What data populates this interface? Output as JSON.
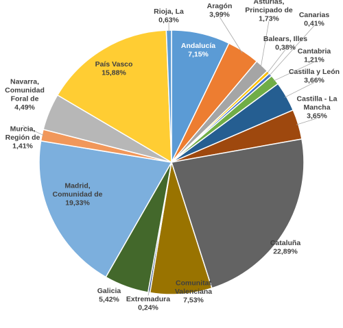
{
  "chart_data": {
    "type": "pie",
    "start_angle_deg": 0,
    "slices": [
      {
        "lines": [
          "Andalucía",
          "7,15%"
        ],
        "value": 7.15,
        "color": "#5b9bd5"
      },
      {
        "lines": [
          "Aragón",
          "3,99%"
        ],
        "value": 3.99,
        "color": "#ed7d31"
      },
      {
        "lines": [
          "Asturias,",
          "Principado de",
          "1,73%"
        ],
        "value": 1.73,
        "color": "#a5a5a5"
      },
      {
        "lines": [
          "Balears, Illes",
          "0,38%"
        ],
        "value": 0.38,
        "color": "#ffc000"
      },
      {
        "lines": [
          "Canarias",
          "0,41%"
        ],
        "value": 0.41,
        "color": "#4472c4"
      },
      {
        "lines": [
          "Cantabria",
          "1,21%"
        ],
        "value": 1.21,
        "color": "#70ad47"
      },
      {
        "lines": [
          "Castilla y León",
          "3,66%"
        ],
        "value": 3.66,
        "color": "#255e91"
      },
      {
        "lines": [
          "Castilla - La",
          "Mancha",
          "3,65%"
        ],
        "value": 3.65,
        "color": "#9e480e"
      },
      {
        "lines": [
          "Cataluña",
          "22,89%"
        ],
        "value": 22.89,
        "color": "#636363"
      },
      {
        "lines": [
          "Comunitat",
          "Valenciana",
          "7,53%"
        ],
        "value": 7.53,
        "color": "#997300"
      },
      {
        "lines": [
          "Extremadura",
          "0,24%"
        ],
        "value": 0.24,
        "color": "#264478"
      },
      {
        "lines": [
          "Galicia",
          "5,42%"
        ],
        "value": 5.42,
        "color": "#43682b"
      },
      {
        "lines": [
          "Madrid,",
          "Comunidad de",
          "19,33%"
        ],
        "value": 19.33,
        "color": "#7cafdd"
      },
      {
        "lines": [
          "Murcia,",
          "Región de",
          "1,41%"
        ],
        "value": 1.41,
        "color": "#f1975a"
      },
      {
        "lines": [
          "Navarra,",
          "Comunidad",
          "Foral de",
          "4,49%"
        ],
        "value": 4.49,
        "color": "#b7b7b7"
      },
      {
        "lines": [
          "País Vasco",
          "15,88%"
        ],
        "value": 15.88,
        "color": "#ffcd33"
      },
      {
        "lines": [
          "Rioja, La",
          "0,63%"
        ],
        "value": 0.63,
        "color": "#5b9bd5"
      }
    ]
  }
}
